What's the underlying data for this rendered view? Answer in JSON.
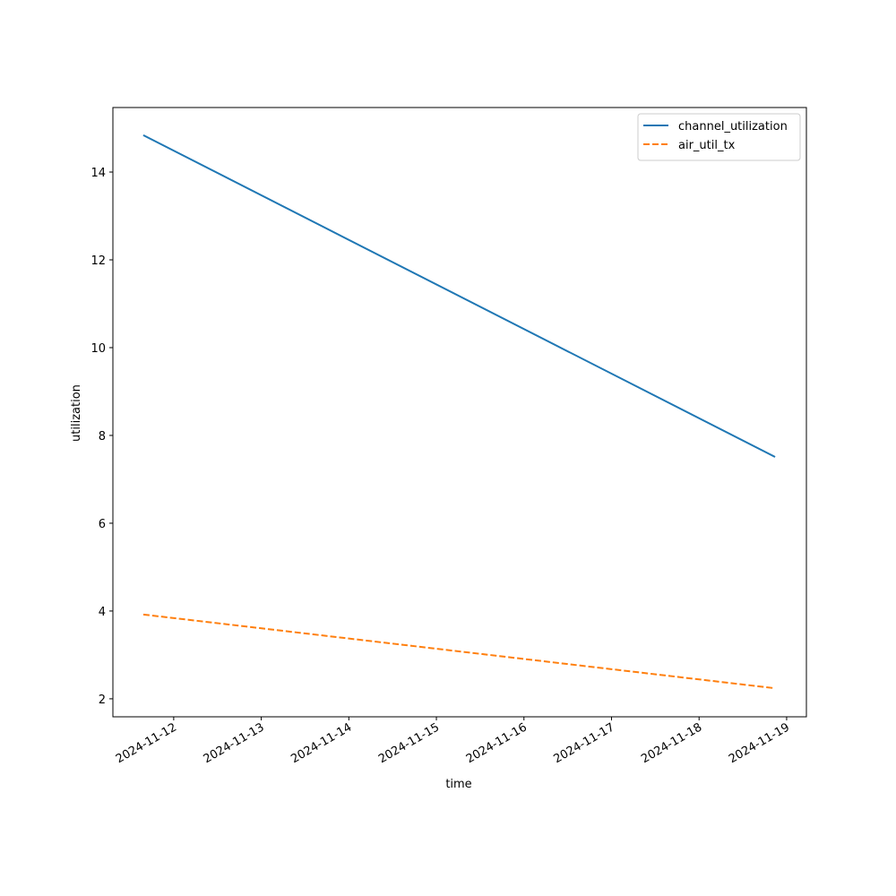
{
  "chart_data": {
    "type": "line",
    "x_label": "time",
    "y_label": "utilization",
    "x": [
      "2024-11-11T15:40",
      "2024-11-18T20:50"
    ],
    "series": [
      {
        "name": "channel_utilization",
        "color": "#1f77b4",
        "linestyle": "solid",
        "values": [
          14.84,
          7.51
        ]
      },
      {
        "name": "air_util_tx",
        "color": "#ff7f0e",
        "linestyle": "dashed",
        "values": [
          3.92,
          2.24
        ]
      }
    ],
    "xlim": [
      "2024-11-11T07:20",
      "2024-11-19T05:25"
    ],
    "xticks": [
      "2024-11-12",
      "2024-11-13",
      "2024-11-14",
      "2024-11-15",
      "2024-11-16",
      "2024-11-17",
      "2024-11-18",
      "2024-11-19"
    ],
    "ylim": [
      1.59,
      15.47
    ],
    "yticks": [
      2,
      4,
      6,
      8,
      10,
      12,
      14
    ],
    "grid": false,
    "legend": "upper right"
  }
}
